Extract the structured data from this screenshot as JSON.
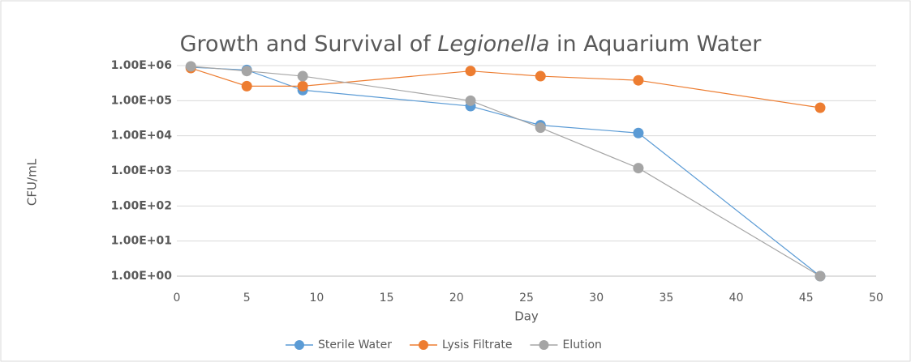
{
  "chart_data": {
    "type": "line",
    "title": [
      "Growth and Survival of ",
      "Legionella",
      " in Aquarium Water"
    ],
    "x_label": "Day",
    "y_label": "CFU/mL",
    "xlim": [
      0,
      50
    ],
    "xticks": [
      0,
      5,
      10,
      15,
      20,
      25,
      30,
      35,
      40,
      45,
      50
    ],
    "ylim": [
      1,
      1000000
    ],
    "log_y": true,
    "yticks": [
      {
        "value": 1,
        "label": "1.00E+00"
      },
      {
        "value": 10,
        "label": "1.00E+01"
      },
      {
        "value": 100,
        "label": "1.00E+02"
      },
      {
        "value": 1000,
        "label": "1.00E+03"
      },
      {
        "value": 10000,
        "label": "1.00E+04"
      },
      {
        "value": 100000,
        "label": "1.00E+05"
      },
      {
        "value": 1000000,
        "label": "1.00E+06"
      }
    ],
    "grid": true,
    "legend": "bottom",
    "x": [
      1,
      5,
      9,
      21,
      26,
      33,
      46
    ],
    "series": [
      {
        "name": "Sterile Water",
        "color": "#5b9bd5",
        "values": [
          900000,
          750000,
          200000,
          70000,
          20000,
          12000,
          1
        ]
      },
      {
        "name": "Lysis Filtrate",
        "color": "#ed7d31",
        "values": [
          850000,
          260000,
          260000,
          700000,
          500000,
          380000,
          63000
        ]
      },
      {
        "name": "Elution",
        "color": "#a5a5a5",
        "values": [
          950000,
          700000,
          500000,
          100000,
          17000,
          1200,
          1
        ]
      }
    ]
  }
}
